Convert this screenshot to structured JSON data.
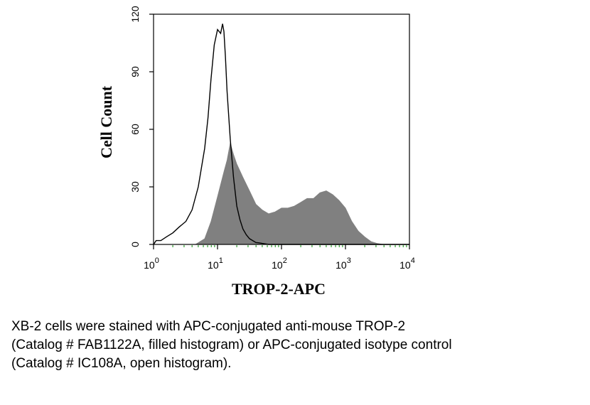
{
  "chart_data": {
    "type": "area",
    "xlabel": "TROP-2-APC",
    "ylabel": "Cell Count",
    "x_scale": "log",
    "xlim": [
      1,
      10000
    ],
    "ylim": [
      0,
      120
    ],
    "y_ticks": [
      "0",
      "30",
      "60",
      "90",
      "120"
    ],
    "x_ticks": [
      {
        "base": "10",
        "exp": "0",
        "value": 1
      },
      {
        "base": "10",
        "exp": "1",
        "value": 10
      },
      {
        "base": "10",
        "exp": "2",
        "value": 100
      },
      {
        "base": "10",
        "exp": "3",
        "value": 1000
      },
      {
        "base": "10",
        "exp": "4",
        "value": 10000
      }
    ],
    "grid": false,
    "legend": "none",
    "series": [
      {
        "style": "filled",
        "color": "#808080",
        "x": [
          1,
          4.5,
          6.3,
          7.9,
          10,
          12.6,
          14.1,
          15.8,
          17.8,
          20,
          25,
          31.6,
          39.8,
          50,
          63,
          79,
          100,
          126,
          158,
          200,
          251,
          316,
          398,
          501,
          631,
          794,
          1000,
          1259,
          1585,
          1995,
          2512,
          3162,
          3981,
          5012,
          10000
        ],
        "y": [
          0,
          0,
          3,
          12,
          25,
          38,
          44,
          53,
          47,
          42,
          35,
          28,
          21,
          18,
          16,
          17,
          19,
          19,
          20,
          22,
          24,
          24,
          27,
          28,
          26,
          23,
          19,
          12,
          7,
          4,
          1.5,
          0.5,
          0,
          0,
          0
        ]
      },
      {
        "style": "open",
        "color": "#000000",
        "x": [
          1,
          1.1,
          1.3,
          1.6,
          2,
          2.5,
          3.2,
          4,
          5,
          6.3,
          7.1,
          7.9,
          8.9,
          10,
          11.2,
          12,
          12.6,
          13.3,
          14.1,
          15.8,
          17.8,
          20,
          22.4,
          25,
          28.2,
          31.6,
          35.5,
          39.8,
          44.7,
          50,
          63,
          100,
          10000
        ],
        "y": [
          0,
          2,
          2,
          4,
          6,
          9,
          12,
          18,
          30,
          50,
          66,
          86,
          104,
          112,
          110,
          115,
          111,
          98,
          80,
          55,
          35,
          20,
          13,
          8,
          5,
          3,
          2,
          1,
          0.8,
          0.5,
          0,
          0,
          0
        ]
      }
    ]
  },
  "caption": {
    "lines": [
      "XB-2 cells were stained with APC-conjugated anti-mouse TROP-2",
      "(Catalog # FAB1122A, filled histogram) or APC-conjugated isotype control",
      "(Catalog # IC108A, open histogram)."
    ]
  }
}
